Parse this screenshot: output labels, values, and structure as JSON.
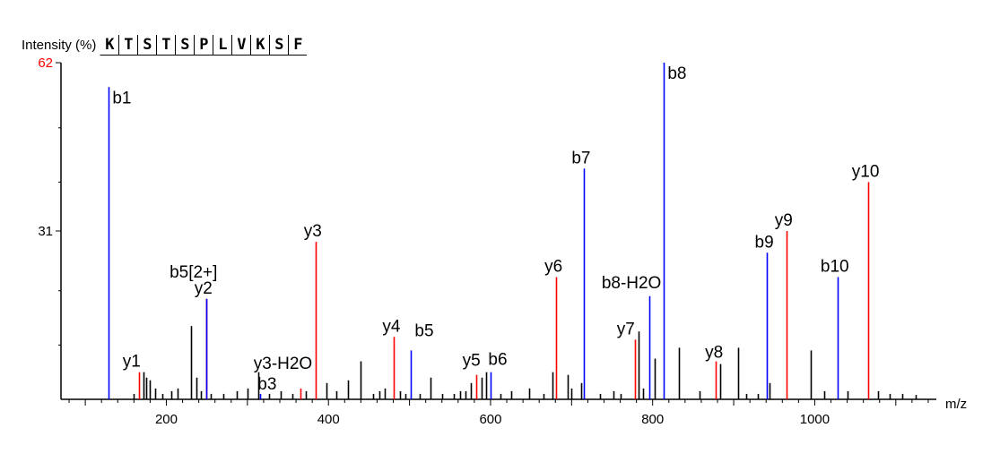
{
  "chart_data": {
    "type": "bar",
    "title": "",
    "ylabel": "Intensity (%)",
    "xlabel": "m/z",
    "xlim": [
      70,
      1150
    ],
    "ylim": [
      0,
      62
    ],
    "xticks": [
      "200",
      "400",
      "600",
      "800",
      "1000"
    ],
    "yticks": [
      {
        "label": "31",
        "value": 31
      },
      {
        "label": "62",
        "value": 62,
        "color": "#ff0000"
      }
    ],
    "sequence": [
      "K",
      "T",
      "S",
      "T",
      "S",
      "P",
      "L",
      "V",
      "K",
      "S",
      "F"
    ],
    "colors": {
      "b_ion": "#0000ff",
      "y_ion": "#ff0000",
      "unassigned": "#000000"
    },
    "series": [
      {
        "name": "b ions",
        "points": [
          {
            "label": "b1",
            "mz": 129,
            "intensity": 57.5
          },
          {
            "label": "b3",
            "mz": 316,
            "intensity": 1.0
          },
          {
            "label": "b5[2+]",
            "mz": 249,
            "intensity": 18.5
          },
          {
            "label": "b5",
            "mz": 502,
            "intensity": 9.0
          },
          {
            "label": "b6",
            "mz": 600,
            "intensity": 5.0
          },
          {
            "label": "b7",
            "mz": 715,
            "intensity": 42.5
          },
          {
            "label": "b8-H2O",
            "mz": 796,
            "intensity": 19.0
          },
          {
            "label": "b8",
            "mz": 814,
            "intensity": 62.0
          },
          {
            "label": "b9",
            "mz": 941,
            "intensity": 27.0
          },
          {
            "label": "b10",
            "mz": 1028,
            "intensity": 22.5
          }
        ]
      },
      {
        "name": "y ions",
        "points": [
          {
            "label": "y1",
            "mz": 166,
            "intensity": 5.0
          },
          {
            "label": "y2",
            "mz": 249,
            "intensity": 18.5
          },
          {
            "label": "y3-H2O",
            "mz": 366,
            "intensity": 2.0
          },
          {
            "label": "y3",
            "mz": 384,
            "intensity": 29.0
          },
          {
            "label": "y4",
            "mz": 481,
            "intensity": 11.5
          },
          {
            "label": "y5",
            "mz": 582,
            "intensity": 4.5
          },
          {
            "label": "y6",
            "mz": 681,
            "intensity": 22.5
          },
          {
            "label": "y7",
            "mz": 778,
            "intensity": 11.0
          },
          {
            "label": "y8",
            "mz": 878,
            "intensity": 7.0
          },
          {
            "label": "y9",
            "mz": 965,
            "intensity": 31.0
          },
          {
            "label": "y10",
            "mz": 1066,
            "intensity": 40.0
          }
        ]
      },
      {
        "name": "unassigned",
        "points": [
          {
            "mz": 160,
            "intensity": 1.0
          },
          {
            "mz": 172,
            "intensity": 5.0
          },
          {
            "mz": 175,
            "intensity": 4.0
          },
          {
            "mz": 180,
            "intensity": 3.5
          },
          {
            "mz": 186,
            "intensity": 2.0
          },
          {
            "mz": 195,
            "intensity": 1.0
          },
          {
            "mz": 206,
            "intensity": 1.5
          },
          {
            "mz": 214,
            "intensity": 2.0
          },
          {
            "mz": 231,
            "intensity": 13.5
          },
          {
            "mz": 237,
            "intensity": 4.0
          },
          {
            "mz": 243,
            "intensity": 1.5
          },
          {
            "mz": 255,
            "intensity": 1.0
          },
          {
            "mz": 270,
            "intensity": 1.0
          },
          {
            "mz": 287,
            "intensity": 1.5
          },
          {
            "mz": 300,
            "intensity": 2.0
          },
          {
            "mz": 313,
            "intensity": 5.0
          },
          {
            "mz": 327,
            "intensity": 1.0
          },
          {
            "mz": 341,
            "intensity": 1.5
          },
          {
            "mz": 355,
            "intensity": 1.0
          },
          {
            "mz": 372,
            "intensity": 1.5
          },
          {
            "mz": 398,
            "intensity": 3.0
          },
          {
            "mz": 410,
            "intensity": 1.5
          },
          {
            "mz": 424,
            "intensity": 3.5
          },
          {
            "mz": 440,
            "intensity": 7.0
          },
          {
            "mz": 455,
            "intensity": 1.0
          },
          {
            "mz": 463,
            "intensity": 1.5
          },
          {
            "mz": 470,
            "intensity": 2.0
          },
          {
            "mz": 488,
            "intensity": 1.5
          },
          {
            "mz": 495,
            "intensity": 1.0
          },
          {
            "mz": 513,
            "intensity": 1.0
          },
          {
            "mz": 526,
            "intensity": 4.0
          },
          {
            "mz": 540,
            "intensity": 1.0
          },
          {
            "mz": 555,
            "intensity": 1.0
          },
          {
            "mz": 562,
            "intensity": 1.5
          },
          {
            "mz": 569,
            "intensity": 1.5
          },
          {
            "mz": 576,
            "intensity": 3.0
          },
          {
            "mz": 589,
            "intensity": 4.0
          },
          {
            "mz": 595,
            "intensity": 5.0
          },
          {
            "mz": 612,
            "intensity": 1.0
          },
          {
            "mz": 626,
            "intensity": 1.5
          },
          {
            "mz": 648,
            "intensity": 2.0
          },
          {
            "mz": 665,
            "intensity": 1.0
          },
          {
            "mz": 676,
            "intensity": 5.0
          },
          {
            "mz": 695,
            "intensity": 4.5
          },
          {
            "mz": 700,
            "intensity": 2.0
          },
          {
            "mz": 712,
            "intensity": 3.0
          },
          {
            "mz": 735,
            "intensity": 1.0
          },
          {
            "mz": 752,
            "intensity": 1.5
          },
          {
            "mz": 760,
            "intensity": 1.0
          },
          {
            "mz": 783,
            "intensity": 12.5
          },
          {
            "mz": 788,
            "intensity": 2.0
          },
          {
            "mz": 802,
            "intensity": 7.5
          },
          {
            "mz": 832,
            "intensity": 9.5
          },
          {
            "mz": 858,
            "intensity": 1.5
          },
          {
            "mz": 883,
            "intensity": 6.5
          },
          {
            "mz": 905,
            "intensity": 9.5
          },
          {
            "mz": 915,
            "intensity": 1.0
          },
          {
            "mz": 930,
            "intensity": 1.0
          },
          {
            "mz": 944,
            "intensity": 3.0
          },
          {
            "mz": 995,
            "intensity": 9.0
          },
          {
            "mz": 1012,
            "intensity": 1.5
          },
          {
            "mz": 1040,
            "intensity": 1.5
          },
          {
            "mz": 1078,
            "intensity": 1.5
          },
          {
            "mz": 1093,
            "intensity": 1.0
          },
          {
            "mz": 1108,
            "intensity": 1.0
          },
          {
            "mz": 1125,
            "intensity": 0.8
          }
        ]
      }
    ]
  }
}
